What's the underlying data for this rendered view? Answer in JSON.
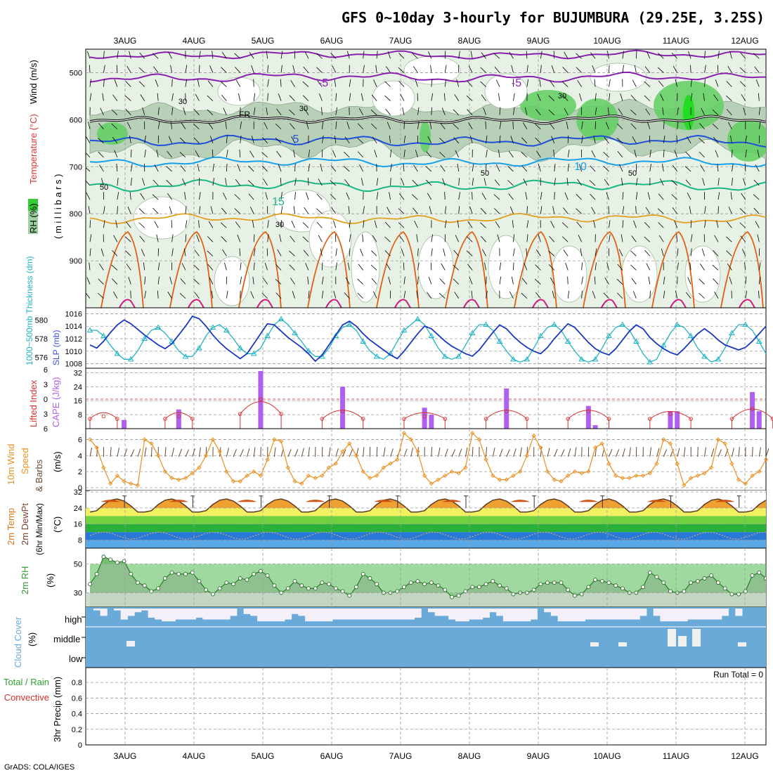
{
  "title": "GFS 0~10day 3-hourly for BUJUMBURA (29.25E, 3.25S)",
  "credit": "GrADS: COLA/IGES",
  "run_total_text": "Run Total = 0",
  "dates": [
    "3AUG",
    "4AUG",
    "5AUG",
    "6AUG",
    "7AUG",
    "8AUG",
    "9AUG",
    "10AUG",
    "11AUG",
    "12AUG"
  ],
  "panel_labels": {
    "upper": {
      "wind": "Wind (m/s)",
      "temp": "Temperature (°C)",
      "rh": "RH (%)",
      "mb": "( m i l l i b a r s )"
    },
    "sfc1": {
      "thick": "1000~500mb Thickness (dm)",
      "slp": "SLP (mb)"
    },
    "sfc2": {
      "li": "Lifted Index",
      "cape": "CAPE (J/kg)"
    },
    "wind10": {
      "a": "10m Wind",
      "b": "Speed",
      "c": "& Barbs",
      "unit": "(m/s)"
    },
    "temp2m": {
      "a": "2m Temp",
      "b": "2m DewPt",
      "c": "(6hr Min/Max)",
      "unit": "(°C)"
    },
    "rh2m": {
      "a": "2m RH",
      "unit": "(%)"
    },
    "cloud": {
      "a": "Cloud Cover",
      "unit": "(%)",
      "high": "high",
      "middle": "middle",
      "low": "low"
    },
    "precip": {
      "a": "Total / Rain",
      "b": "Convective",
      "c": "3hr Precip (mm)"
    }
  },
  "colors": {
    "thickness": "#20b4c4",
    "slp": "#1a38c0",
    "li": "#d83030",
    "cape": "#b060f0",
    "wind10": "#e89020",
    "barbs": "#6a4a30",
    "temp": "#e07818",
    "dewpt": "#804030",
    "rh": "#50a850",
    "cloud": "#6aaad8",
    "rh_shade_dark": "#8fbf8f",
    "rh_shade_light": "#e2efe2",
    "iso_neg5": "#8a20b0",
    "iso_0": "#000000",
    "iso_5": "#2050d8",
    "iso_10": "#18a0e8",
    "iso_15": "#18b880",
    "iso_20": "#e0a020",
    "iso_25": "#e06010",
    "iso_30": "#d01880"
  },
  "chart_data": [
    {
      "type": "line",
      "panel": "upper-air cross section",
      "y_axis": {
        "label": "millibars",
        "ticks": [
          500,
          600,
          700,
          800,
          900
        ],
        "range": [
          1000,
          450
        ]
      },
      "isotherm_labels": [
        {
          "value": "-5",
          "color": "#8a20b0"
        },
        {
          "value": "-5",
          "color": "#8a20b0"
        },
        {
          "value": "FR",
          "color": "#000000"
        },
        {
          "value": "5",
          "color": "#2050d8"
        },
        {
          "value": "10",
          "color": "#18a0e8"
        },
        {
          "value": "15",
          "color": "#18b880"
        }
      ],
      "rh_contour_labels": [
        "30",
        "30",
        "30",
        "50",
        "50",
        "50",
        "30"
      ],
      "freezing_level_mb": 600,
      "isotherms_mb": {
        "minus5": 510,
        "five": 645,
        "ten": 690,
        "fifteen": 740,
        "twenty": 810
      }
    },
    {
      "type": "line",
      "panel": "thickness and SLP",
      "series": [
        {
          "name": "1000~500mb Thickness (dm)",
          "axis": "left",
          "values": [
            578.9,
            578.9,
            578.3,
            577.3,
            576.4,
            575.8,
            575.8,
            576.7,
            578.0,
            578.9,
            579.2,
            578.6,
            577.7,
            576.7,
            576.1,
            576.1,
            577.0,
            578.3,
            579.2,
            579.5,
            578.9,
            578.0,
            577.0,
            576.4,
            576.4,
            577.0,
            578.3,
            579.5,
            580.1,
            579.5,
            578.6,
            577.7,
            576.7,
            576.1,
            576.1,
            577.0,
            578.3,
            579.2,
            579.5,
            578.9,
            577.7,
            576.7,
            576.1,
            575.8,
            576.4,
            577.7,
            578.9,
            579.5,
            580.1,
            579.5,
            578.3,
            577.0,
            576.1,
            575.8,
            576.1,
            577.3,
            578.6,
            579.5,
            579.5,
            578.9,
            577.7,
            576.7,
            575.8,
            575.5,
            575.8,
            577.0,
            578.3,
            579.2,
            579.5,
            578.9,
            577.7,
            576.7,
            575.8,
            575.5,
            575.8,
            577.0,
            578.3,
            579.2,
            579.5,
            578.9,
            577.7,
            576.4,
            575.5,
            575.8,
            577.3,
            578.6,
            579.5,
            579.2,
            578.3,
            577.0,
            576.1,
            575.5,
            575.8,
            577.0,
            578.6,
            579.5,
            579.5,
            578.9,
            577.7,
            576.4
          ]
        },
        {
          "name": "SLP (mb)",
          "axis": "right",
          "values": [
            1011.0,
            1010.5,
            1011.6,
            1013.0,
            1014.2,
            1015.0,
            1014.4,
            1013.5,
            1012.6,
            1011.8,
            1011.0,
            1010.4,
            1011.2,
            1012.6,
            1014.0,
            1015.6,
            1015.2,
            1014.0,
            1012.6,
            1011.4,
            1010.4,
            1009.6,
            1008.8,
            1009.6,
            1011.2,
            1012.8,
            1014.4,
            1014.2,
            1013.2,
            1012.2,
            1011.4,
            1010.6,
            1009.6,
            1008.4,
            1009.4,
            1011.0,
            1012.6,
            1014.2,
            1014.8,
            1014.0,
            1012.8,
            1011.8,
            1011.0,
            1010.2,
            1009.4,
            1008.8,
            1010.0,
            1011.4,
            1012.8,
            1014.0,
            1013.6,
            1012.6,
            1011.6,
            1010.8,
            1010.2,
            1009.6,
            1009.2,
            1010.2,
            1011.6,
            1013.0,
            1014.2,
            1013.6,
            1012.4,
            1011.4,
            1010.6,
            1010.0,
            1009.6,
            1010.6,
            1012.0,
            1013.2,
            1014.4,
            1013.8,
            1012.6,
            1011.4,
            1010.4,
            1009.8,
            1009.4,
            1010.4,
            1011.8,
            1013.2,
            1014.2,
            1013.6,
            1012.2,
            1011.2,
            1010.4,
            1009.8,
            1009.4,
            1010.4,
            1011.6,
            1012.8,
            1013.6,
            1012.8,
            1011.8,
            1011.0,
            1010.6,
            1010.2,
            1010.6,
            1011.6,
            1012.8,
            1014.0
          ]
        }
      ],
      "ylim_left": [
        575,
        581
      ],
      "yticks_left": [
        576,
        578,
        580
      ],
      "ylim_right": [
        1007.5,
        1016.5
      ],
      "yticks_right": [
        1008,
        1010,
        1012,
        1014,
        1016
      ]
    },
    {
      "type": "bar",
      "panel": "lifted index and CAPE",
      "series": [
        {
          "name": "CAPE (J/kg)",
          "values_at_steps": {
            "5": 5,
            "13": 11,
            "25": 33,
            "37": 24,
            "49": 12,
            "50": 8,
            "61": 23,
            "73": 13,
            "74": 2,
            "85": 10,
            "86": 10,
            "97": 21,
            "98": 10,
            "109": 11,
            "110": 8
          }
        },
        {
          "name": "Lifted Index",
          "values_at_steps": {
            "0": 4,
            "2": 3.5,
            "4": 4,
            "11": 4,
            "13": 3.5,
            "15": 4,
            "22": 3,
            "25": 0,
            "28": 3,
            "34": 4,
            "37": 2.5,
            "40": 4,
            "46": 4,
            "49": 3.5,
            "52": 4,
            "58": 4,
            "61": 2.5,
            "64": 4,
            "70": 4,
            "73": 2.5,
            "76": 4,
            "82": 4,
            "85": 3,
            "88": 4,
            "94": 4,
            "97": 2,
            "100": 4,
            "106": 5,
            "109": 4.5,
            "112": 5
          }
        }
      ],
      "yticks_li": [
        -6,
        -3,
        0,
        3,
        6
      ],
      "yticks_cape": [
        8,
        16,
        24,
        32
      ],
      "li_dashed_zero": true
    },
    {
      "type": "line",
      "panel": "10m wind speed",
      "x_step_hours": 3,
      "values": [
        6.0,
        5.0,
        2.5,
        0.5,
        1.5,
        0.8,
        0.5,
        0.3,
        6.0,
        5.5,
        4.0,
        2.0,
        1.2,
        1.0,
        1.2,
        1.8,
        2.5,
        4.0,
        6.0,
        4.5,
        2.0,
        0.8,
        0.8,
        1.5,
        2.0,
        1.5,
        3.5,
        6.0,
        5.8,
        2.5,
        0.8,
        0.5,
        1.5,
        1.2,
        1.5,
        2.5,
        3.0,
        4.5,
        5.5,
        4.0,
        2.0,
        1.2,
        1.5,
        2.5,
        3.0,
        3.5,
        6.8,
        6.0,
        4.5,
        1.5,
        0.5,
        1.0,
        1.5,
        2.0,
        1.8,
        2.5,
        6.8,
        6.0,
        3.5,
        1.5,
        1.0,
        1.0,
        1.5,
        2.0,
        4.0,
        6.5,
        5.0,
        2.0,
        1.0,
        0.8,
        1.5,
        2.0,
        1.8,
        2.0,
        5.0,
        5.5,
        3.0,
        1.5,
        1.2,
        1.2,
        1.5,
        1.5,
        1.8,
        3.0,
        6.0,
        5.5,
        3.0,
        0.3,
        1.2,
        1.5,
        1.8,
        2.5,
        6.0,
        5.5,
        3.0,
        1.0,
        0.5,
        1.5,
        2.0,
        3.5
      ],
      "ylim": [
        0,
        7
      ],
      "yticks": [
        0,
        2,
        4,
        6
      ]
    },
    {
      "type": "area",
      "panel": "2m temperature and dewpoint",
      "series": [
        {
          "name": "2m Temp",
          "min": 22,
          "max": 28.5,
          "period_hours": 24
        },
        {
          "name": "2m DewPt",
          "min": 8.5,
          "max": 12,
          "period_hours": 24
        }
      ],
      "ylim": [
        4,
        32
      ],
      "yticks": [
        8,
        16,
        24,
        32
      ],
      "color_bands": [
        {
          "from": 4,
          "to": 8,
          "color": "#58a8e8"
        },
        {
          "from": 8,
          "to": 12,
          "color": "#2878d8"
        },
        {
          "from": 12,
          "to": 16,
          "color": "#28b038"
        },
        {
          "from": 16,
          "to": 20,
          "color": "#70d040"
        },
        {
          "from": 20,
          "to": 24,
          "color": "#f0f060"
        }
      ]
    },
    {
      "type": "area",
      "panel": "2m relative humidity",
      "values": [
        36,
        43,
        55,
        53,
        51,
        52,
        43,
        37,
        35,
        31,
        33,
        40,
        44,
        43,
        43,
        44,
        38,
        32,
        29,
        33,
        37,
        36,
        40,
        39,
        43,
        45,
        42,
        35,
        30,
        33,
        38,
        35,
        33,
        33,
        37,
        36,
        33,
        31,
        28,
        34,
        43,
        40,
        36,
        30,
        30,
        31,
        34,
        37,
        38,
        36,
        37,
        35,
        32,
        27,
        28,
        31,
        34,
        34,
        36,
        38,
        35,
        33,
        29,
        30,
        30,
        32,
        36,
        37,
        37,
        37,
        32,
        28,
        29,
        34,
        39,
        38,
        37,
        35,
        33,
        30,
        30,
        34,
        44,
        41,
        37,
        31,
        30,
        31,
        37,
        38,
        40,
        42,
        37,
        33,
        29,
        29,
        31,
        42,
        44,
        40
      ],
      "ylim": [
        20,
        60
      ],
      "yticks": [
        30,
        50
      ]
    },
    {
      "type": "bar",
      "panel": "cloud cover",
      "layers": [
        "high",
        "middle",
        "low"
      ],
      "high_cover_pct": [
        100,
        90,
        60,
        100,
        90,
        40,
        60,
        80,
        90,
        50,
        40,
        30,
        30,
        40,
        40,
        40,
        50,
        40,
        40,
        40,
        40,
        60,
        100,
        70,
        60,
        30,
        30,
        30,
        30,
        40,
        70,
        60,
        30,
        30,
        30,
        30,
        40,
        40,
        40,
        40,
        40,
        40,
        40,
        40,
        40,
        40,
        40,
        40,
        50,
        100,
        80,
        60,
        60,
        40,
        30,
        30,
        40,
        40,
        50,
        80,
        60,
        30,
        30,
        30,
        30,
        40,
        100,
        80,
        60,
        30,
        30,
        30,
        30,
        40,
        40,
        40,
        40,
        40,
        40,
        40,
        40,
        60,
        100,
        60,
        30,
        30,
        30,
        30,
        40,
        40,
        40,
        40,
        40,
        60,
        100,
        60,
        100
      ]
    },
    {
      "type": "bar",
      "panel": "3hr precipitation",
      "ylim": [
        0,
        0.9
      ],
      "yticks": [
        0,
        0.2,
        0.4,
        0.6,
        0.8
      ],
      "values": [],
      "run_total": "0"
    }
  ]
}
